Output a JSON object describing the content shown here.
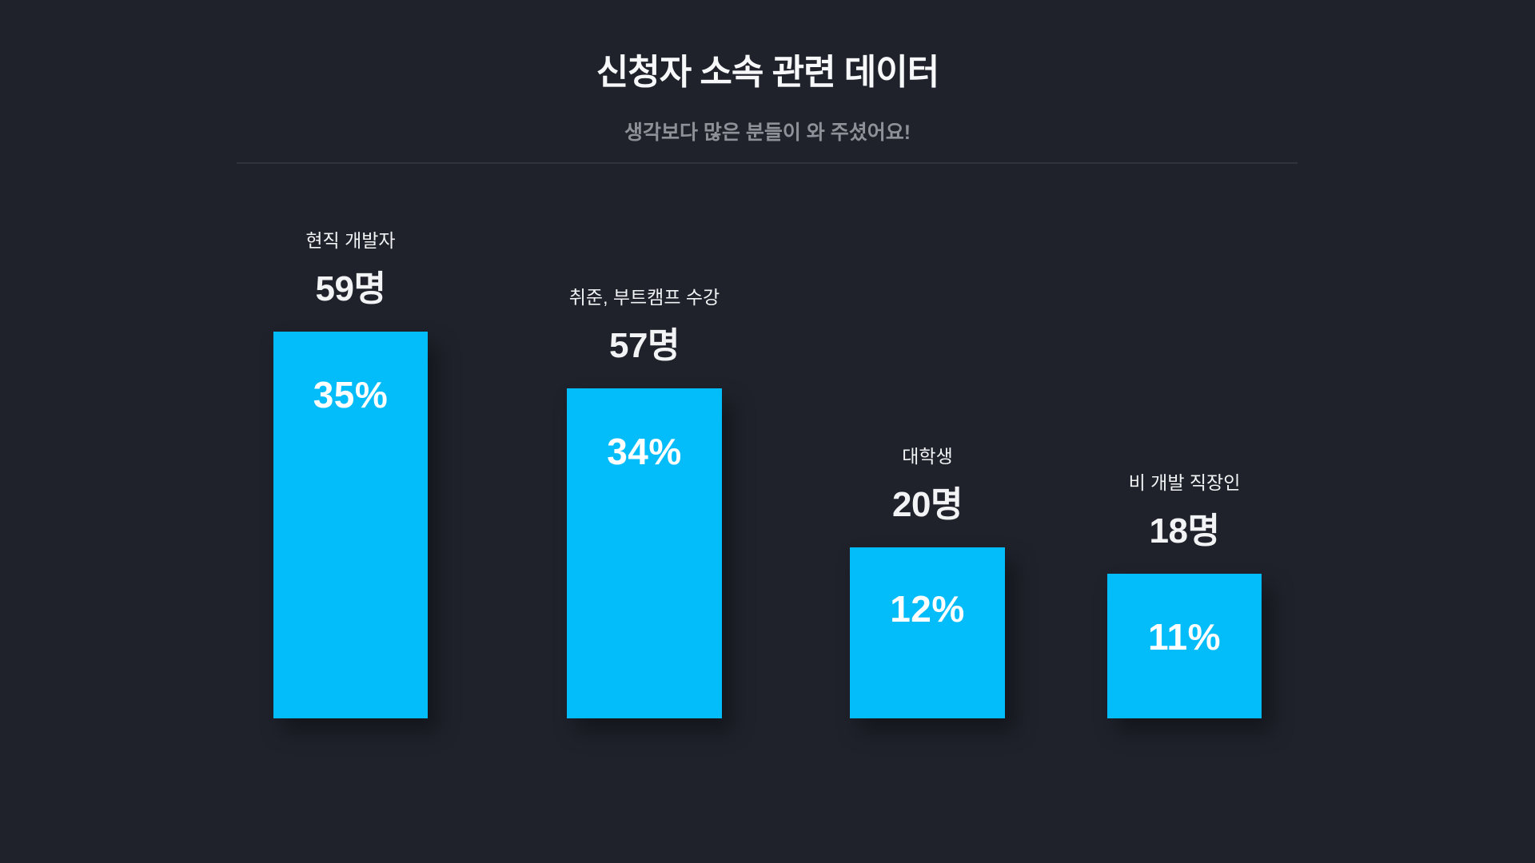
{
  "page": {
    "background_color": "#1f222b",
    "accent_color": "#03bdfa",
    "text_color": "#f7f8fa",
    "muted_text_color": "#8e9298"
  },
  "header": {
    "title": "신청자 소속 관련 데이터",
    "subtitle": "생각보다 많은 분들이 와 주셨어요!"
  },
  "chart_data": {
    "type": "bar",
    "title": "신청자 소속 관련 데이터",
    "subtitle": "생각보다 많은 분들이 와 주셨어요!",
    "orientation": "vertical",
    "grid": false,
    "legend": false,
    "axes_visible": false,
    "bar_color": "#03bdfa",
    "categories": [
      "현직 개발자",
      "취준, 부트캠프 수강",
      "대학생",
      "비 개발 직장인"
    ],
    "series": [
      {
        "name": "인원",
        "unit": "명",
        "values": [
          59,
          57,
          20,
          18
        ]
      },
      {
        "name": "비율",
        "unit": "%",
        "values": [
          35,
          34,
          12,
          11
        ]
      }
    ]
  },
  "bars": [
    {
      "category": "현직 개발자",
      "count": 59,
      "count_label": "59명",
      "percent": 35,
      "percent_label": "35%"
    },
    {
      "category": "취준, 부트캠프 수강",
      "count": 57,
      "count_label": "57명",
      "percent": 34,
      "percent_label": "34%"
    },
    {
      "category": "대학생",
      "count": 20,
      "count_label": "20명",
      "percent": 12,
      "percent_label": "12%"
    },
    {
      "category": "비 개발 직장인",
      "count": 18,
      "count_label": "18명",
      "percent": 11,
      "percent_label": "11%"
    }
  ]
}
